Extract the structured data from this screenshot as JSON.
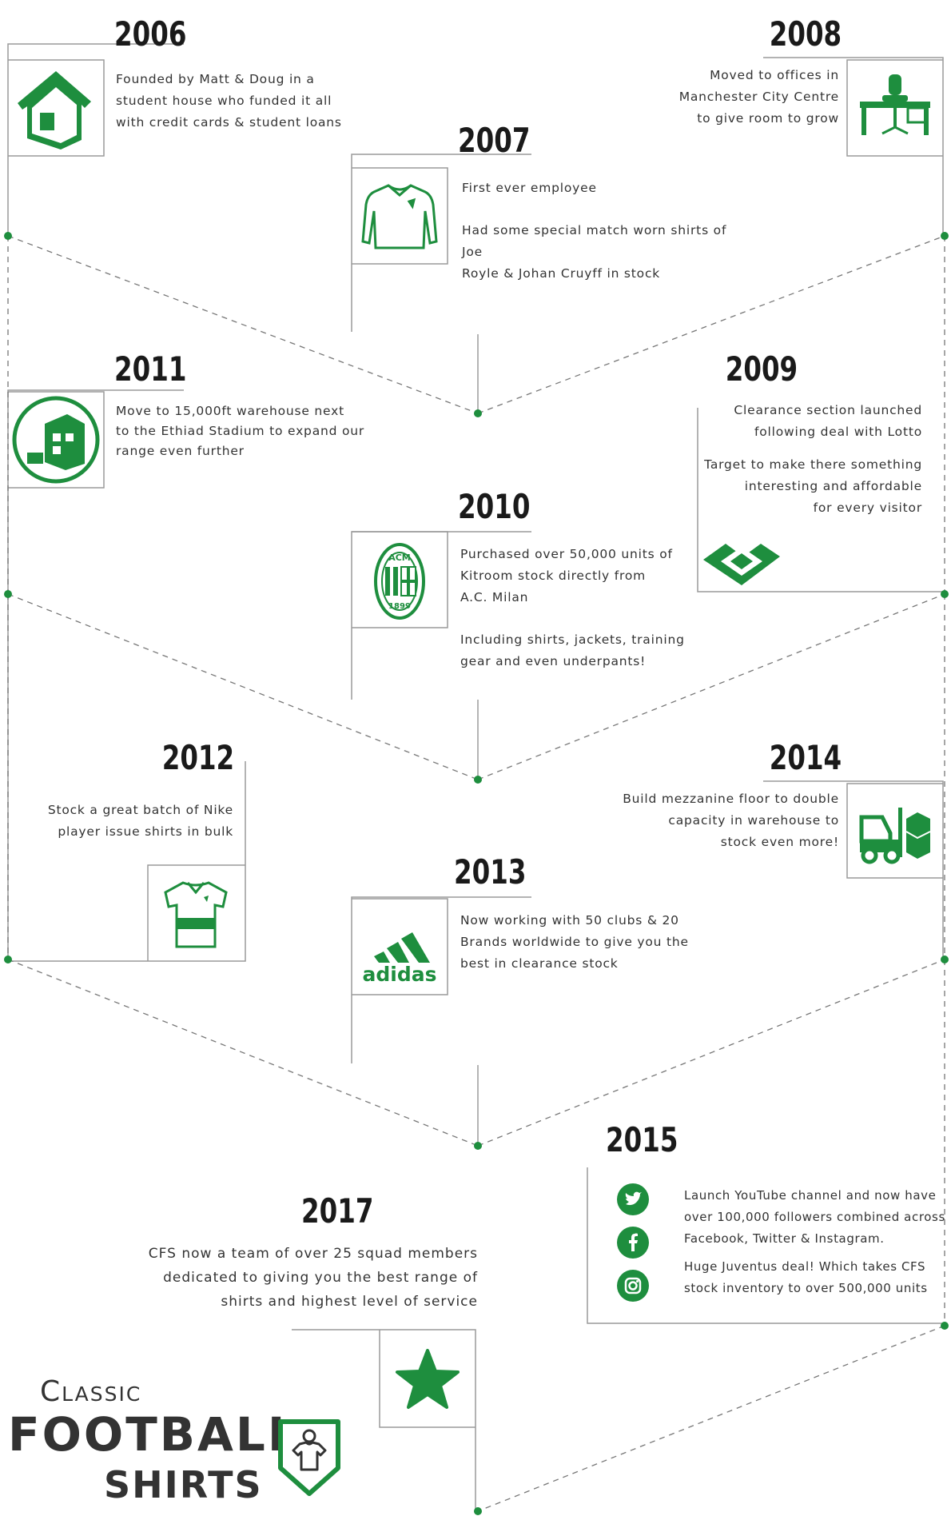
{
  "colors": {
    "accent": "#1e8e3e",
    "line": "#9a9a9a",
    "text": "#333333"
  },
  "brand": {
    "line1": "Classic",
    "line2": "Football",
    "line3": "Shirts",
    "icon": "shirt-shield-icon"
  },
  "milestones": [
    {
      "year": "2006",
      "icon": "house-icon",
      "paragraphs": [
        "Founded by Matt & Doug in a",
        "student house who funded it all",
        "with credit cards & student loans"
      ]
    },
    {
      "year": "2007",
      "icon": "long-sleeve-shirt-icon",
      "paragraphs": [
        "First ever employee",
        "Had some special match worn shirts of Joe",
        "Royle & Johan Cruyff in stock"
      ]
    },
    {
      "year": "2008",
      "icon": "office-desk-icon",
      "paragraphs": [
        "Moved to offices in",
        "Manchester City Centre",
        "to give room to grow"
      ]
    },
    {
      "year": "2009",
      "icon": "lotto-logo-icon",
      "paragraphs": [
        "Clearance section launched",
        "following deal with Lotto",
        "Target to make there something",
        "interesting and affordable",
        "for every visitor"
      ]
    },
    {
      "year": "2010",
      "icon": "ac-milan-crest-icon",
      "paragraphs": [
        "Purchased over 50,000 units of",
        "Kitroom stock directly from",
        "A.C. Milan",
        "Including shirts, jackets, training",
        "gear and even underpants!"
      ]
    },
    {
      "year": "2011",
      "icon": "warehouse-icon",
      "paragraphs": [
        "Move to 15,000ft warehouse next",
        "to the Ethiad Stadium to expand our",
        "range even further"
      ]
    },
    {
      "year": "2012",
      "icon": "polo-shirt-icon",
      "paragraphs": [
        "Stock a great batch of Nike",
        "player issue shirts in bulk"
      ]
    },
    {
      "year": "2013",
      "icon": "adidas-logo-icon",
      "logo_text": "adidas",
      "paragraphs": [
        "Now working with 50 clubs & 20",
        "Brands worldwide to give you the",
        "best in clearance stock"
      ]
    },
    {
      "year": "2014",
      "icon": "forklift-icon",
      "paragraphs": [
        "Build mezzanine floor to double",
        "capacity in warehouse to",
        "stock even more!"
      ]
    },
    {
      "year": "2015",
      "icons": [
        "twitter-icon",
        "facebook-icon",
        "instagram-icon"
      ],
      "paragraphs": [
        "Launch YouTube channel and now have",
        "over 100,000 followers combined across",
        "Facebook, Twitter & Instagram.",
        "Huge Juventus deal! Which takes CFS",
        "stock inventory to over 500,000 units"
      ]
    },
    {
      "year": "2017",
      "icon": "star-icon",
      "paragraphs": [
        "CFS now a team of over 25 squad members",
        "dedicated to giving you the best range of",
        "shirts and highest level of service"
      ]
    }
  ]
}
